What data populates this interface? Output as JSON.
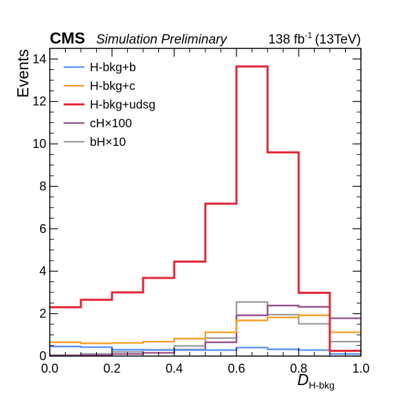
{
  "chart_data": {
    "type": "line",
    "style": "step-histogram",
    "header": {
      "experiment": "CMS",
      "status": "Simulation Preliminary",
      "lumi_value": "138 fb",
      "lumi_exponent": "-1",
      "energy": "(13TeV)"
    },
    "xlabel_main": "D",
    "xlabel_sub": "H-bkg",
    "ylabel": "Events",
    "xlim": [
      0.0,
      1.0
    ],
    "ylim": [
      0,
      14.5
    ],
    "x_ticks": [
      "0.0",
      "0.2",
      "0.4",
      "0.6",
      "0.8",
      "1.0"
    ],
    "y_ticks": [
      "0",
      "2",
      "4",
      "6",
      "8",
      "10",
      "12",
      "14"
    ],
    "bin_edges": [
      0.0,
      0.1,
      0.2,
      0.3,
      0.4,
      0.5,
      0.6,
      0.7,
      0.8,
      0.9,
      1.0
    ],
    "legend_position": "top-left",
    "series": [
      {
        "name": "H-bkg+b",
        "color": "#5790fc",
        "values": [
          0.45,
          0.42,
          0.3,
          0.28,
          0.28,
          0.28,
          0.4,
          0.32,
          0.28,
          0.1
        ]
      },
      {
        "name": "H-bkg+c",
        "color": "#f89c20",
        "values": [
          0.65,
          0.6,
          0.62,
          0.68,
          0.82,
          1.12,
          1.68,
          1.82,
          1.92,
          1.12
        ]
      },
      {
        "name": "H-bkg+udsg",
        "color": "#e42536",
        "values": [
          2.3,
          2.65,
          3.0,
          3.68,
          4.45,
          7.18,
          13.65,
          9.6,
          2.98,
          0.25
        ]
      },
      {
        "name": "cH×100",
        "color": "#964a8b",
        "values": [
          0.02,
          0.05,
          0.1,
          0.15,
          0.3,
          0.65,
          1.92,
          2.38,
          2.32,
          1.78
        ]
      },
      {
        "name": "bH×10",
        "color": "#9c9ca1",
        "values": [
          0.05,
          0.1,
          0.2,
          0.3,
          0.48,
          0.85,
          2.55,
          1.95,
          1.52,
          0.68
        ]
      }
    ]
  }
}
